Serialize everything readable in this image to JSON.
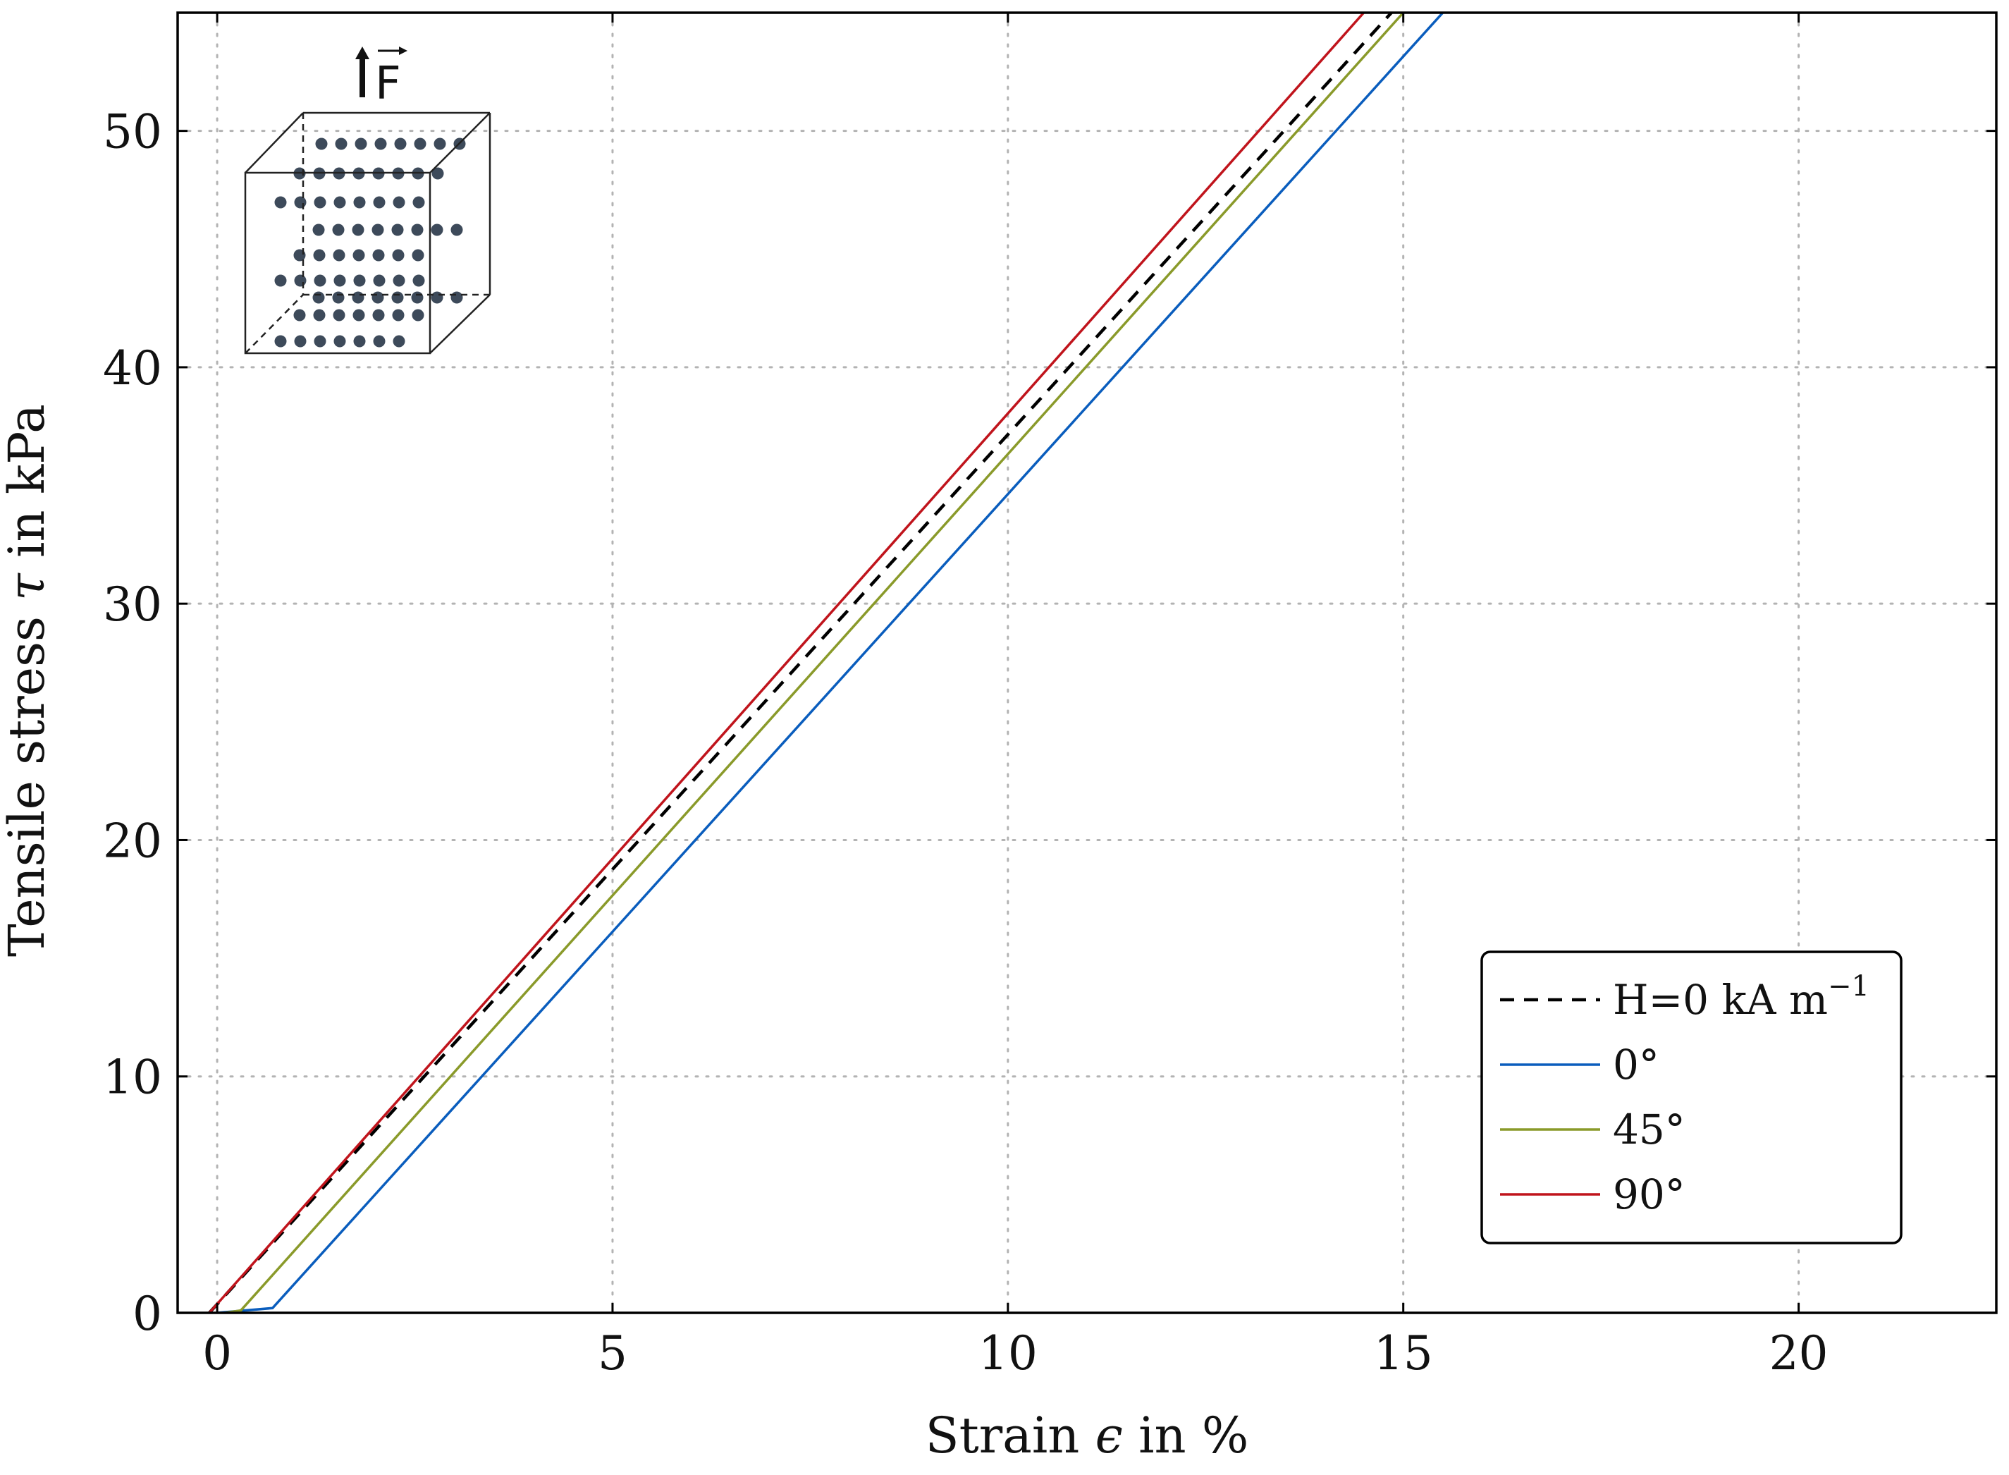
{
  "chart_data": {
    "type": "line",
    "title": "",
    "xlabel": "Strain ϵ in %",
    "xlabel_parts": {
      "prefix": "Strain ",
      "symbol": "ϵ",
      "suffix": " in %"
    },
    "ylabel": "Tensile stress τ in kPa",
    "ylabel_parts": {
      "prefix": "Tensile stress ",
      "symbol": "τ",
      "suffix": " in kPa"
    },
    "xlim": [
      -0.5,
      22.5
    ],
    "ylim": [
      0,
      55
    ],
    "xticks": [
      0,
      5,
      10,
      15,
      20
    ],
    "yticks": [
      0,
      10,
      20,
      30,
      40,
      50
    ],
    "grid": true,
    "legend_position": "bottom-right",
    "series": [
      {
        "name": "H=0 kA m−1",
        "label_main": "H=0 kA m",
        "label_sup": "−1",
        "color": "#000000",
        "dash": "dashed",
        "x": [
          -0.1,
          14.85
        ],
        "y": [
          0,
          55
        ]
      },
      {
        "name": "0°",
        "label_main": "0°",
        "label_sup": "",
        "color": "#0a5dbd",
        "dash": "solid",
        "x": [
          0,
          0.7,
          15.5
        ],
        "y": [
          0,
          0.2,
          55
        ]
      },
      {
        "name": "45°",
        "label_main": "45°",
        "label_sup": "",
        "color": "#8a9a2a",
        "dash": "solid",
        "x": [
          0.1,
          0.3,
          15.0
        ],
        "y": [
          0,
          0.1,
          55
        ]
      },
      {
        "name": "90°",
        "label_main": "90°",
        "label_sup": "",
        "color": "#c0141c",
        "dash": "solid",
        "x": [
          -0.1,
          14.5
        ],
        "y": [
          0,
          55
        ]
      }
    ],
    "inset": {
      "force_label": "F",
      "description": "cube with particle chains"
    }
  }
}
